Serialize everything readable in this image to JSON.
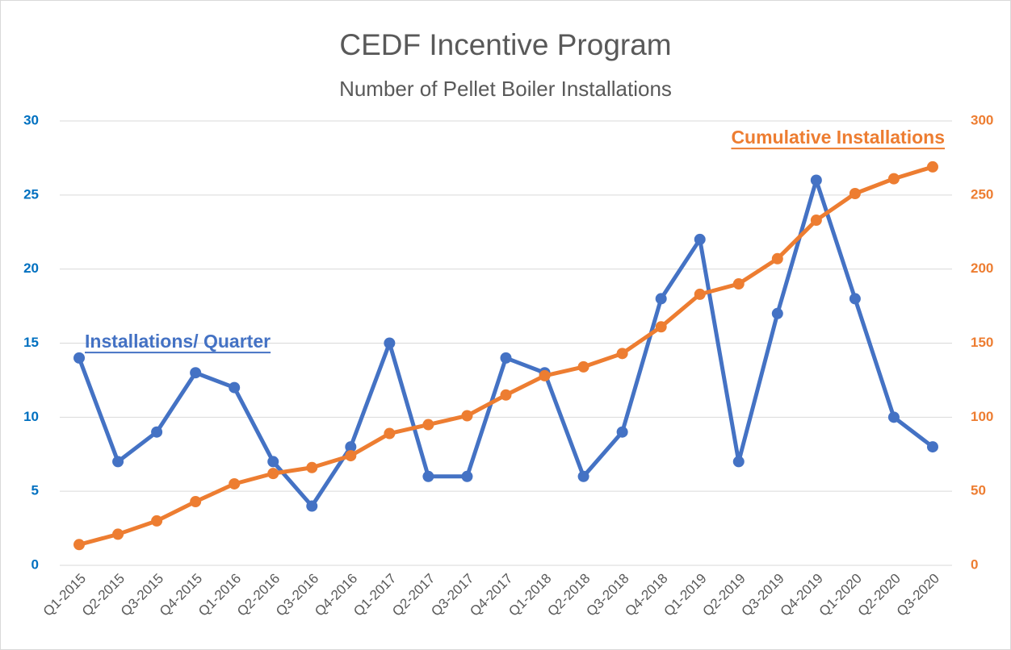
{
  "chart_data": {
    "type": "line",
    "title": "CEDF Incentive Program",
    "subtitle": "Number of Pellet Boiler Installations",
    "categories": [
      "Q1-2015",
      "Q2-2015",
      "Q3-2015",
      "Q4-2015",
      "Q1-2016",
      "Q2-2016",
      "Q3-2016",
      "Q4-2016",
      "Q1-2017",
      "Q2-2017",
      "Q3-2017",
      "Q4-2017",
      "Q1-2018",
      "Q2-2018",
      "Q3-2018",
      "Q4-2018",
      "Q1-2019",
      "Q2-2019",
      "Q3-2019",
      "Q4-2019",
      "Q1-2020",
      "Q2-2020",
      "Q3-2020"
    ],
    "series": [
      {
        "name": "Installations/ Quarter",
        "color": "#4472c4",
        "values": [
          14,
          7,
          9,
          13,
          12,
          7,
          4,
          8,
          15,
          6,
          6,
          14,
          13,
          6,
          9,
          18,
          22,
          7,
          17,
          26,
          18,
          10,
          8
        ]
      },
      {
        "name": "Cumulative Installations",
        "color": "#ed7d31",
        "axis": "y2",
        "values": [
          14,
          21,
          30,
          43,
          55,
          62,
          66,
          74,
          89,
          95,
          101,
          115,
          128,
          134,
          143,
          161,
          183,
          190,
          207,
          233,
          251,
          261,
          269
        ]
      }
    ],
    "ylim": [
      0,
      30
    ],
    "yticks": [
      0,
      5,
      10,
      15,
      20,
      25,
      30
    ],
    "ytick_color": "#0070c0",
    "y2lim": [
      0,
      300
    ],
    "y2ticks": [
      0,
      50,
      100,
      150,
      200,
      250,
      300
    ],
    "y2tick_color": "#ed7d31",
    "grid": true
  }
}
